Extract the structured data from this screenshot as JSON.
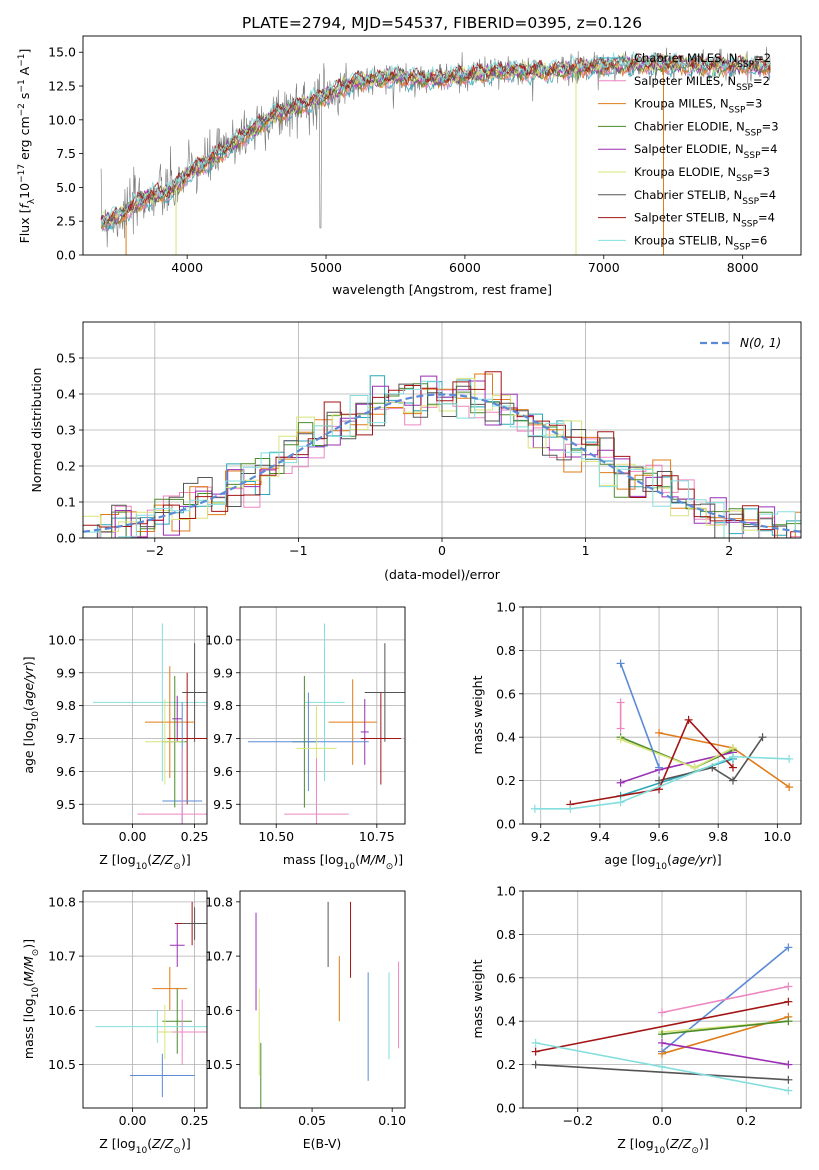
{
  "figure_title": "PLATE=2794, MJD=54537, FIBERID=0395, z=0.126",
  "colors": {
    "Chabrier MILES": "#2aa7b8",
    "Salpeter MILES": "#ee86c1",
    "Kroupa MILES": "#e07b1a",
    "Chabrier ELODIE": "#4b8b2a",
    "Salpeter ELODIE": "#9b2fb5",
    "Kroupa ELODIE": "#d8e47a",
    "Chabrier STELIB": "#555555",
    "Salpeter STELIB": "#a31515",
    "Kroupa STELIB": "#85dede",
    "axis": "#000000",
    "grid": "#b0b0b0",
    "normal": "#5b8bd6"
  },
  "chart_data": [
    {
      "id": "spectrum",
      "type": "line",
      "title": "PLATE=2794, MJD=54537, FIBERID=0395, z=0.126",
      "xlabel": "wavelength [Angstrom, rest frame]",
      "ylabel": "Flux [f_λ 10^-17 erg cm^-2 s^-1 A^-1]",
      "xlim": [
        3250,
        8420
      ],
      "ylim": [
        0,
        16.2
      ],
      "xticks": [
        4000,
        5000,
        6000,
        7000,
        8000
      ],
      "yticks": [
        0.0,
        2.5,
        5.0,
        7.5,
        10.0,
        12.5,
        15.0
      ],
      "grid": false,
      "legend_position": "top-right",
      "series": [
        {
          "name": "Chabrier MILES, N_SSP=2"
        },
        {
          "name": "Salpeter MILES, N_SSP=2"
        },
        {
          "name": "Kroupa MILES, N_SSP=3"
        },
        {
          "name": "Chabrier ELODIE, N_SSP=3"
        },
        {
          "name": "Salpeter ELODIE, N_SSP=4"
        },
        {
          "name": "Kroupa ELODIE, N_SSP=3"
        },
        {
          "name": "Chabrier STELIB, N_SSP=4"
        },
        {
          "name": "Salpeter STELIB, N_SSP=4"
        },
        {
          "name": "Kroupa STELIB, N_SSP=6"
        }
      ],
      "continuum": [
        [
          3380,
          2.5
        ],
        [
          3500,
          2.8
        ],
        [
          3700,
          4.2
        ],
        [
          3900,
          4.8
        ],
        [
          4000,
          6.0
        ],
        [
          4200,
          7.2
        ],
        [
          4400,
          8.8
        ],
        [
          4600,
          10.2
        ],
        [
          4800,
          11.0
        ],
        [
          5000,
          11.8
        ],
        [
          5200,
          12.8
        ],
        [
          5500,
          13.2
        ],
        [
          5800,
          13.0
        ],
        [
          6000,
          13.3
        ],
        [
          6300,
          13.6
        ],
        [
          6600,
          13.6
        ],
        [
          6900,
          13.9
        ],
        [
          7200,
          14.1
        ],
        [
          7500,
          14.1
        ],
        [
          7800,
          14.0
        ],
        [
          8000,
          14.0
        ],
        [
          8200,
          13.9
        ]
      ]
    },
    {
      "id": "residuals",
      "type": "histogram",
      "xlabel": "(data-model)/error",
      "ylabel": "Normed distribution",
      "xlim": [
        -2.5,
        2.5
      ],
      "ylim": [
        0,
        0.6
      ],
      "xticks": [
        -2,
        -1,
        0,
        1,
        2
      ],
      "yticks": [
        0.0,
        0.1,
        0.2,
        0.3,
        0.4,
        0.5
      ],
      "grid": true,
      "legend": "N(0, 1)",
      "legend_position": "top-right",
      "reference_curve": "normal distribution mean 0 sigma 1"
    },
    {
      "id": "age-vs-Z",
      "type": "errorbar",
      "xlabel": "Z [log10(Z/Z_sun)]",
      "ylabel": "age [log10(age/yr)]",
      "xlim": [
        -0.2,
        0.3
      ],
      "ylim": [
        9.44,
        10.1
      ],
      "xticks": [
        0.0,
        0.25
      ],
      "yticks": [
        9.5,
        9.6,
        9.7,
        9.8,
        9.9,
        10.0
      ],
      "grid": true
    },
    {
      "id": "age-vs-mass",
      "type": "errorbar",
      "xlabel": "mass [log10(M/M_sun)]",
      "xlim": [
        10.41,
        10.82
      ],
      "ylim": [
        9.44,
        10.1
      ],
      "xticks": [
        10.5,
        10.75
      ],
      "yticks": [
        9.5,
        9.6,
        9.7,
        9.8,
        9.9,
        10.0
      ],
      "grid": true
    },
    {
      "id": "weight-vs-age",
      "type": "line",
      "xlabel": "age [log10(age/yr)]",
      "ylabel": "mass weight",
      "xlim": [
        9.14,
        10.08
      ],
      "ylim": [
        0.0,
        1.0
      ],
      "xticks": [
        9.2,
        9.4,
        9.6,
        9.8,
        10.0
      ],
      "yticks": [
        0.0,
        0.2,
        0.4,
        0.6,
        0.8,
        1.0
      ],
      "grid": true,
      "series": [
        {
          "color_key": "Chabrier MILES",
          "points": [
            [
              9.47,
              0.13
            ],
            [
              9.85,
              0.3
            ]
          ]
        },
        {
          "color_key": "Salpeter MILES",
          "points": [
            [
              9.47,
              0.56
            ],
            [
              9.47,
              0.44
            ]
          ]
        },
        {
          "color_key": "Kroupa MILES",
          "points": [
            [
              9.6,
              0.42
            ],
            [
              9.85,
              0.35
            ],
            [
              10.04,
              0.17
            ]
          ]
        },
        {
          "color_key": "Chabrier ELODIE",
          "points": [
            [
              9.47,
              0.4
            ],
            [
              9.72,
              0.26
            ],
            [
              9.85,
              0.34
            ]
          ]
        },
        {
          "color_key": "Salpeter ELODIE",
          "points": [
            [
              9.47,
              0.19
            ],
            [
              9.6,
              0.25
            ],
            [
              9.85,
              0.33
            ]
          ]
        },
        {
          "color_key": "Kroupa ELODIE",
          "points": [
            [
              9.47,
              0.39
            ],
            [
              9.72,
              0.26
            ],
            [
              9.85,
              0.35
            ]
          ]
        },
        {
          "color_key": "Chabrier STELIB",
          "points": [
            [
              9.6,
              0.2
            ],
            [
              9.78,
              0.26
            ],
            [
              9.85,
              0.2
            ],
            [
              9.95,
              0.4
            ]
          ]
        },
        {
          "color_key": "Salpeter STELIB",
          "points": [
            [
              9.3,
              0.09
            ],
            [
              9.6,
              0.16
            ],
            [
              9.7,
              0.48
            ],
            [
              9.85,
              0.26
            ]
          ]
        },
        {
          "color_key": "Kroupa STELIB",
          "points": [
            [
              9.18,
              0.07
            ],
            [
              9.3,
              0.07
            ],
            [
              9.47,
              0.1
            ],
            [
              9.85,
              0.31
            ],
            [
              10.04,
              0.3
            ]
          ]
        },
        {
          "color_key": "normal",
          "points": [
            [
              9.47,
              0.74
            ],
            [
              9.6,
              0.26
            ]
          ]
        }
      ]
    },
    {
      "id": "mass-vs-Z",
      "type": "errorbar",
      "xlabel": "Z [log10(Z/Z_sun)]",
      "ylabel": "mass [log10(M/M_sun)]",
      "xlim": [
        -0.2,
        0.3
      ],
      "ylim": [
        10.42,
        10.82
      ],
      "xticks": [
        0.0,
        0.25
      ],
      "yticks": [
        10.5,
        10.6,
        10.7,
        10.8
      ],
      "grid": true
    },
    {
      "id": "mass-vs-EBV",
      "type": "errorbar",
      "xlabel": "E(B-V)",
      "xlim": [
        0.005,
        0.108
      ],
      "ylim": [
        10.42,
        10.82
      ],
      "xticks": [
        0.05,
        0.1
      ],
      "yticks": [
        10.5,
        10.6,
        10.7,
        10.8
      ],
      "grid": false
    },
    {
      "id": "weight-vs-Z",
      "type": "line",
      "xlabel": "Z [log10(Z/Z_sun)]",
      "ylabel": "mass weight",
      "xlim": [
        -0.33,
        0.33
      ],
      "ylim": [
        0.0,
        1.0
      ],
      "xticks": [
        -0.2,
        0.0,
        0.2
      ],
      "yticks": [
        0.0,
        0.2,
        0.4,
        0.6,
        0.8,
        1.0
      ],
      "grid": true,
      "series": [
        {
          "color_key": "normal",
          "points": [
            [
              0.0,
              0.26
            ],
            [
              0.3,
              0.74
            ]
          ]
        },
        {
          "color_key": "Salpeter MILES",
          "points": [
            [
              0.0,
              0.44
            ],
            [
              0.3,
              0.56
            ]
          ]
        },
        {
          "color_key": "Salpeter STELIB",
          "points": [
            [
              -0.3,
              0.26
            ],
            [
              0.3,
              0.49
            ]
          ]
        },
        {
          "color_key": "Kroupa MILES",
          "points": [
            [
              0.0,
              0.25
            ],
            [
              0.3,
              0.42
            ]
          ]
        },
        {
          "color_key": "Kroupa ELODIE",
          "points": [
            [
              0.0,
              0.35
            ],
            [
              0.3,
              0.4
            ]
          ]
        },
        {
          "color_key": "Chabrier ELODIE",
          "points": [
            [
              0.0,
              0.34
            ],
            [
              0.3,
              0.4
            ]
          ]
        },
        {
          "color_key": "Salpeter ELODIE",
          "points": [
            [
              0.0,
              0.3
            ],
            [
              0.3,
              0.2
            ]
          ]
        },
        {
          "color_key": "Chabrier STELIB",
          "points": [
            [
              -0.3,
              0.2
            ],
            [
              0.3,
              0.13
            ]
          ]
        },
        {
          "color_key": "Kroupa STELIB",
          "points": [
            [
              -0.3,
              0.3
            ],
            [
              0.0,
              0.19
            ],
            [
              0.3,
              0.08
            ]
          ]
        }
      ]
    }
  ]
}
